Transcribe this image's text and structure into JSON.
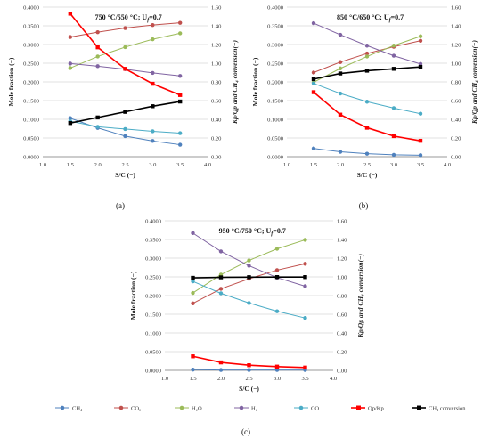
{
  "colors": {
    "CH4": "#4f81bd",
    "CO2": "#c0504d",
    "H2O": "#9bbb59",
    "H2": "#8064a2",
    "CO": "#4bacc6",
    "QpKp": "#ff0000",
    "CH4conv": "#000000"
  },
  "legend": {
    "items": [
      {
        "key": "CH4",
        "label": "CH₄",
        "marker": "circle"
      },
      {
        "key": "CO2",
        "label": "CO₂",
        "marker": "circle"
      },
      {
        "key": "H2O",
        "label": "H₂O",
        "marker": "circle"
      },
      {
        "key": "H2",
        "label": "H₂",
        "marker": "circle"
      },
      {
        "key": "CO",
        "label": "CO",
        "marker": "circle"
      },
      {
        "key": "QpKp",
        "label": "Qp/Kp",
        "marker": "square"
      },
      {
        "key": "CH4conv",
        "label": "CH₄ conversion",
        "marker": "square"
      }
    ]
  },
  "chart_data": [
    {
      "type": "line",
      "panel_label": "(a)",
      "title": "750 °C/550 °C; U",
      "title_sub": "f",
      "title_tail": "=0.7",
      "xlabel": "S/C (−)",
      "ylabel": "Mole fraction (−)",
      "y2label": "Kp/Qp and CH₄ conversion(−)",
      "xlim": [
        1.0,
        4.0
      ],
      "ylim": [
        0,
        0.4
      ],
      "y2lim": [
        0,
        1.6
      ],
      "xticks": [
        "1.0",
        "1.5",
        "2.0",
        "2.5",
        "3.0",
        "3.5",
        "4.0"
      ],
      "yticks": [
        "0.0000",
        "0.0500",
        "0.1000",
        "0.1500",
        "0.2000",
        "0.2500",
        "0.3000",
        "0.3500",
        "0.4000"
      ],
      "y2ticks": [
        "0.00",
        "0.20",
        "0.40",
        "0.60",
        "0.80",
        "1.00",
        "1.20",
        "1.40",
        "1.60"
      ],
      "x": [
        1.5,
        2.0,
        2.5,
        3.0,
        3.5
      ],
      "series": [
        {
          "key": "CH4",
          "axis": "left",
          "values": [
            0.103,
            0.077,
            0.055,
            0.042,
            0.032
          ]
        },
        {
          "key": "CO2",
          "axis": "left",
          "values": [
            0.32,
            0.333,
            0.344,
            0.352,
            0.358
          ]
        },
        {
          "key": "H2O",
          "axis": "left",
          "values": [
            0.237,
            0.268,
            0.293,
            0.314,
            0.33
          ]
        },
        {
          "key": "H2",
          "axis": "left",
          "values": [
            0.249,
            0.242,
            0.234,
            0.224,
            0.216
          ]
        },
        {
          "key": "CO",
          "axis": "left",
          "values": [
            0.095,
            0.08,
            0.074,
            0.068,
            0.063
          ]
        },
        {
          "key": "QpKp",
          "axis": "right",
          "values": [
            1.53,
            1.17,
            0.94,
            0.78,
            0.66
          ]
        },
        {
          "key": "CH4conv",
          "axis": "right",
          "values": [
            0.36,
            0.42,
            0.48,
            0.54,
            0.59
          ]
        }
      ]
    },
    {
      "type": "line",
      "panel_label": "(b)",
      "title": "850 °C/650 °C; U",
      "title_sub": "f",
      "title_tail": "=0.7",
      "xlabel": "S/C (−)",
      "ylabel": "Mole fraction (−)",
      "y2label": "Kp/Qp and CH₄ conversion(−)",
      "xlim": [
        1.0,
        4.0
      ],
      "ylim": [
        0,
        0.4
      ],
      "y2lim": [
        0,
        1.6
      ],
      "xticks": [
        "1.0",
        "1.5",
        "2.0",
        "2.5",
        "3.0",
        "3.5",
        "4.0"
      ],
      "yticks": [
        "0.0000",
        "0.0500",
        "0.1000",
        "0.1500",
        "0.2000",
        "0.2500",
        "0.3000",
        "0.3500",
        "0.4000"
      ],
      "y2ticks": [
        "0.00",
        "0.20",
        "0.40",
        "0.60",
        "0.80",
        "1.00",
        "1.20",
        "1.40",
        "1.60"
      ],
      "x": [
        1.5,
        2.0,
        2.5,
        3.0,
        3.5
      ],
      "series": [
        {
          "key": "CH4",
          "axis": "left",
          "values": [
            0.022,
            0.013,
            0.008,
            0.005,
            0.004
          ]
        },
        {
          "key": "CO2",
          "axis": "left",
          "values": [
            0.225,
            0.253,
            0.276,
            0.294,
            0.31
          ]
        },
        {
          "key": "H2O",
          "axis": "left",
          "values": [
            0.199,
            0.236,
            0.268,
            0.297,
            0.322
          ]
        },
        {
          "key": "H2",
          "axis": "left",
          "values": [
            0.357,
            0.326,
            0.297,
            0.27,
            0.248
          ]
        },
        {
          "key": "CO",
          "axis": "left",
          "values": [
            0.196,
            0.169,
            0.147,
            0.13,
            0.115
          ]
        },
        {
          "key": "QpKp",
          "axis": "right",
          "values": [
            0.69,
            0.45,
            0.31,
            0.22,
            0.17
          ]
        },
        {
          "key": "CH4conv",
          "axis": "right",
          "values": [
            0.83,
            0.89,
            0.92,
            0.94,
            0.96
          ]
        }
      ]
    },
    {
      "type": "line",
      "panel_label": "(c)",
      "title": "950 °C/750 °C; U",
      "title_sub": "f",
      "title_tail": "=0.7",
      "xlabel": "S/C (−)",
      "ylabel": "Mole fraction (−)",
      "y2label": "Kp/Qp and CH₄ conversion(−)",
      "xlim": [
        1.0,
        4.0
      ],
      "ylim": [
        0,
        0.4
      ],
      "y2lim": [
        0,
        1.6
      ],
      "xticks": [
        "1.0",
        "1.5",
        "2.0",
        "2.5",
        "3.0",
        "3.5",
        "4.0"
      ],
      "yticks": [
        "0.0000",
        "0.0500",
        "0.1000",
        "0.1500",
        "0.2000",
        "0.2500",
        "0.3000",
        "0.3500",
        "0.4000"
      ],
      "y2ticks": [
        "0.00",
        "0.20",
        "0.40",
        "0.60",
        "0.80",
        "1.00",
        "1.20",
        "1.40",
        "1.60"
      ],
      "x": [
        1.5,
        2.0,
        2.5,
        3.0,
        3.5
      ],
      "series": [
        {
          "key": "CH4",
          "axis": "left",
          "values": [
            0.002,
            0.001,
            0.001,
            0.001,
            0.001
          ]
        },
        {
          "key": "CO2",
          "axis": "left",
          "values": [
            0.179,
            0.218,
            0.245,
            0.268,
            0.285
          ]
        },
        {
          "key": "H2O",
          "axis": "left",
          "values": [
            0.207,
            0.256,
            0.294,
            0.325,
            0.349
          ]
        },
        {
          "key": "H2",
          "axis": "left",
          "values": [
            0.367,
            0.318,
            0.28,
            0.248,
            0.225
          ]
        },
        {
          "key": "CO",
          "axis": "left",
          "values": [
            0.238,
            0.206,
            0.18,
            0.158,
            0.14
          ]
        },
        {
          "key": "QpKp",
          "axis": "right",
          "values": [
            0.15,
            0.085,
            0.055,
            0.04,
            0.03
          ]
        },
        {
          "key": "CH4conv",
          "axis": "right",
          "values": [
            0.99,
            0.995,
            0.997,
            0.998,
            0.998
          ]
        }
      ]
    }
  ]
}
